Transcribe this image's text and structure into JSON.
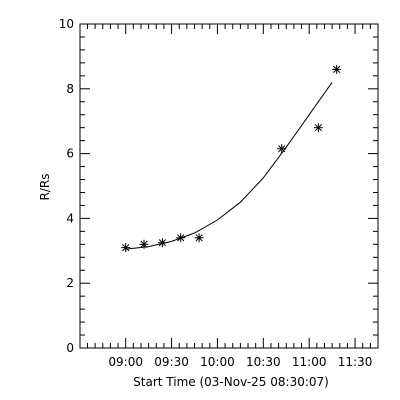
{
  "chart_data": {
    "type": "scatter",
    "title": "",
    "xlabel": "Start Time (03-Nov-25 08:30:07)",
    "ylabel": "R/Rs",
    "xlim": [
      "08:30:07",
      "11:45:00"
    ],
    "ylim": [
      0,
      10
    ],
    "x_ticks": [
      "09:00",
      "09:30",
      "10:00",
      "10:30",
      "11:00",
      "11:30"
    ],
    "y_ticks": [
      "0",
      "2",
      "4",
      "6",
      "8",
      "10"
    ],
    "grid": false,
    "series": [
      {
        "marker": "asterisk",
        "x": [
          "09:00",
          "09:12",
          "09:24",
          "09:36",
          "09:48",
          "10:42",
          "11:06",
          "11:18"
        ],
        "y": [
          3.1,
          3.2,
          3.25,
          3.4,
          3.4,
          6.15,
          6.8,
          8.6
        ]
      },
      {
        "marker": "none",
        "style": "line",
        "x": [
          "09:00",
          "09:15",
          "09:30",
          "09:45",
          "10:00",
          "10:15",
          "10:30",
          "10:45",
          "11:00",
          "11:15"
        ],
        "y": [
          3.05,
          3.13,
          3.29,
          3.55,
          3.95,
          4.5,
          5.25,
          6.2,
          7.2,
          8.2
        ]
      }
    ],
    "color": "#000000"
  }
}
